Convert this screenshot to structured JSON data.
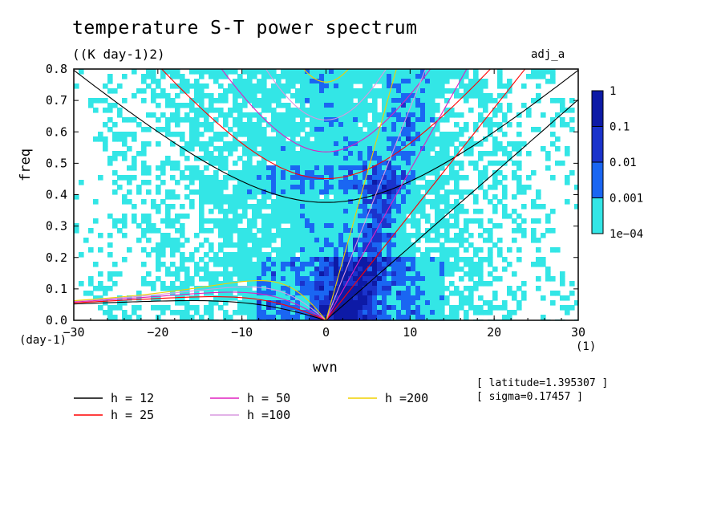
{
  "chart_data": {
    "type": "heatmap",
    "title": "temperature S-T power spectrum",
    "subtitle": "((K day-1)2)",
    "tag": "adj_a",
    "xlabel": "wvn",
    "ylabel": "freq",
    "x_unit": "(1)",
    "y_unit": "(day-1)",
    "xlim": [
      -30,
      30
    ],
    "ylim": [
      0,
      0.8
    ],
    "xticks": [
      -30,
      -20,
      -10,
      0,
      10,
      20,
      30
    ],
    "yticks": [
      0.0,
      0.1,
      0.2,
      0.3,
      0.4,
      0.5,
      0.6,
      0.7,
      0.8
    ],
    "xtick_labels": [
      "−30",
      "−20",
      "−10",
      "0",
      "10",
      "20",
      "30"
    ],
    "ytick_labels": [
      "0.0",
      "0.1",
      "0.2",
      "0.3",
      "0.4",
      "0.5",
      "0.6",
      "0.7",
      "0.8"
    ],
    "colorbar": {
      "levels": [
        0.0001,
        0.001,
        0.01,
        0.1,
        1
      ],
      "labels": [
        "1e−04",
        "0.001",
        "0.01",
        "0.1",
        "1"
      ],
      "colors": [
        "#33e6e6",
        "#1a66f2",
        "#1a33cc",
        "#0d1aa6",
        "#4d1aa6"
      ]
    },
    "dispersion_curves": [
      {
        "name": "h = 12",
        "h": 12,
        "color": "#000000"
      },
      {
        "name": "h = 25",
        "h": 25,
        "color": "#ff0000"
      },
      {
        "name": "h = 50",
        "h": 50,
        "color": "#e020c0"
      },
      {
        "name": "h =100",
        "h": 100,
        "color": "#d898e0"
      },
      {
        "name": "h =200",
        "h": 200,
        "color": "#f0d000"
      }
    ],
    "annotations": [
      "[ latitude=1.395307 ]",
      "[ sigma=0.17457 ]"
    ]
  }
}
